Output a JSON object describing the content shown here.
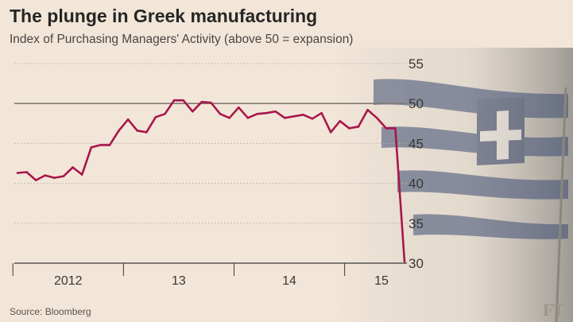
{
  "title": "The plunge in Greek manufacturing",
  "subtitle": "Index of Purchasing Managers' Activity (above 50 = expansion)",
  "source": "Source: Bloomberg",
  "logo": "FT",
  "colors": {
    "background": "#f2e6d8",
    "line": "#a8174a",
    "grid": "#b8b0a6",
    "reference_line": "#7f7a72",
    "flag_blue": "#3c4c73"
  },
  "chart_data": {
    "type": "line",
    "title": "The plunge in Greek manufacturing",
    "subtitle": "Index of Purchasing Managers' Activity (above 50 = expansion)",
    "xlabel": "",
    "ylabel": "",
    "x": [
      "2012-01",
      "2012-02",
      "2012-03",
      "2012-04",
      "2012-05",
      "2012-06",
      "2012-07",
      "2012-08",
      "2012-09",
      "2012-10",
      "2012-11",
      "2012-12",
      "2013-01",
      "2013-02",
      "2013-03",
      "2013-04",
      "2013-05",
      "2013-06",
      "2013-07",
      "2013-08",
      "2013-09",
      "2013-10",
      "2013-11",
      "2013-12",
      "2014-01",
      "2014-02",
      "2014-03",
      "2014-04",
      "2014-05",
      "2014-06",
      "2014-07",
      "2014-08",
      "2014-09",
      "2014-10",
      "2014-11",
      "2014-12",
      "2015-01",
      "2015-02",
      "2015-03",
      "2015-04",
      "2015-05",
      "2015-06",
      "2015-07"
    ],
    "series": [
      {
        "values": [
          41.3,
          41.4,
          40.4,
          41.0,
          40.7,
          40.9,
          42.0,
          41.1,
          44.5,
          44.8,
          44.8,
          46.6,
          48.0,
          46.6,
          46.4,
          48.3,
          48.7,
          50.4,
          50.4,
          49.0,
          50.2,
          50.1,
          48.7,
          48.2,
          49.5,
          48.2,
          48.7,
          48.8,
          49.0,
          48.2,
          48.4,
          48.6,
          48.1,
          48.8,
          46.4,
          47.8,
          46.9,
          47.1,
          49.2,
          48.2,
          46.9,
          46.9,
          30.2
        ]
      }
    ],
    "x_tick_labels": [
      "2012",
      "13",
      "14",
      "15"
    ],
    "ylim": [
      30,
      55
    ],
    "y_ticks": [
      30,
      35,
      40,
      45,
      50,
      55
    ],
    "reference_line": 50,
    "grid": true,
    "y_axis_position": "right"
  }
}
